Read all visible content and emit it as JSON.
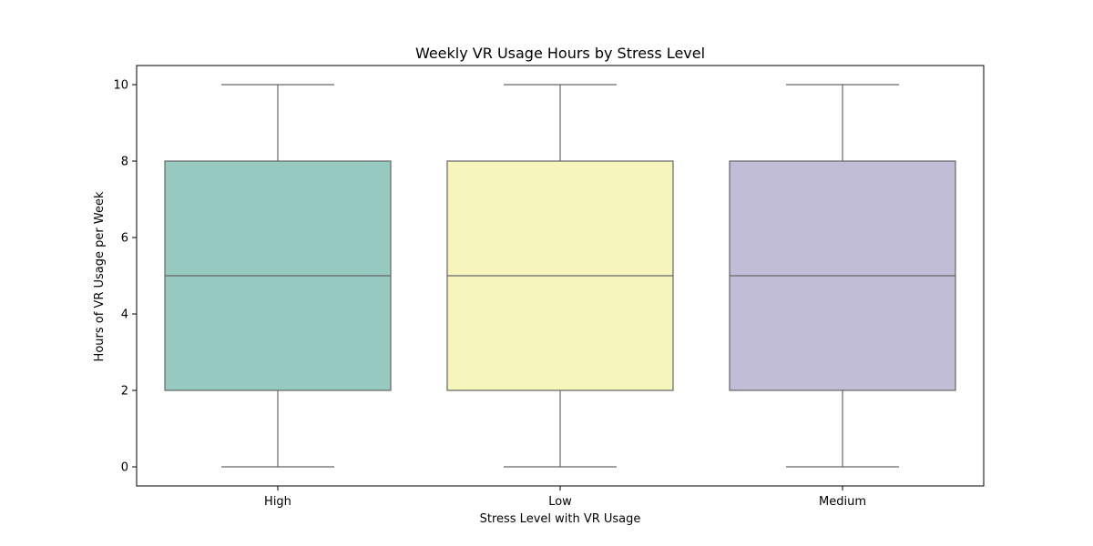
{
  "chart_data": {
    "type": "box",
    "title": "Weekly VR Usage Hours by Stress Level",
    "xlabel": "Stress Level with VR Usage",
    "ylabel": "Hours of VR Usage per Week",
    "ylim": [
      -0.5,
      10.5
    ],
    "yticks": [
      "0",
      "2",
      "4",
      "6",
      "8",
      "10"
    ],
    "grid": false,
    "categories": [
      "High",
      "Low",
      "Medium"
    ],
    "boxes": [
      {
        "category": "High",
        "min": 0,
        "q1": 2,
        "median": 5,
        "q3": 8,
        "max": 10,
        "color": "#96c9bf"
      },
      {
        "category": "Low",
        "min": 0,
        "q1": 2,
        "median": 5,
        "q3": 8,
        "max": 10,
        "color": "#f6f5bb"
      },
      {
        "category": "Medium",
        "min": 0,
        "q1": 2,
        "median": 5,
        "q3": 8,
        "max": 10,
        "color": "#c1bdd6"
      }
    ],
    "line_color": "#666666"
  }
}
